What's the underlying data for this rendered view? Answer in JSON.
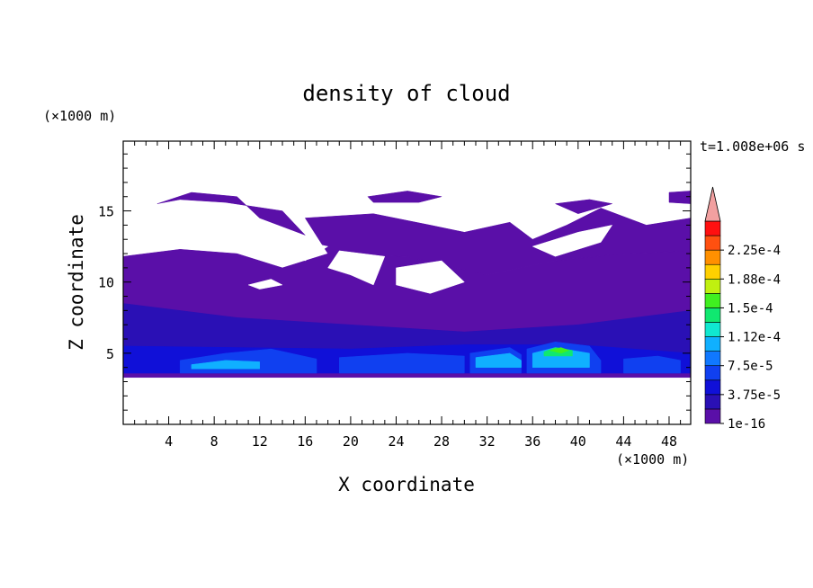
{
  "chart_data": {
    "type": "heatmap",
    "title": "density of cloud",
    "xlabel": "X coordinate",
    "ylabel": "Z coordinate",
    "x_unit": "(×1000 m)",
    "y_unit": "(×1000 m)",
    "time_label": "t=1.008e+06 s",
    "xlim": [
      0,
      49.9
    ],
    "ylim": [
      0,
      19.9
    ],
    "x_ticks": [
      "4",
      "8",
      "12",
      "16",
      "20",
      "24",
      "28",
      "32",
      "36",
      "40",
      "44",
      "48"
    ],
    "y_ticks": [
      "5",
      "10",
      "15"
    ],
    "colorbar": {
      "labels": [
        "1e-16",
        "3.75e-5",
        "7.5e-5",
        "1.12e-4",
        "1.5e-4",
        "1.88e-4",
        "2.25e-4"
      ],
      "levels": 14,
      "colors": [
        "#5a0fa8",
        "#2a10b5",
        "#1010d8",
        "#1040f0",
        "#1078ff",
        "#10b0ff",
        "#10e8d0",
        "#10e870",
        "#40f020",
        "#c0f010",
        "#ffd000",
        "#ff9000",
        "#ff5010",
        "#ff1010"
      ],
      "overflow_color": "#f2a0a0"
    },
    "regions": [
      {
        "level": 1,
        "points": [
          [
            0,
            11.8
          ],
          [
            5,
            12.3
          ],
          [
            10,
            12.0
          ],
          [
            14,
            11.0
          ],
          [
            18,
            12.0
          ],
          [
            25,
            11.8
          ],
          [
            32,
            10.5
          ],
          [
            38,
            11.5
          ],
          [
            44,
            12.0
          ],
          [
            49.9,
            12.2
          ],
          [
            49.9,
            3.3
          ],
          [
            0,
            3.3
          ]
        ]
      },
      {
        "level": 1,
        "points": [
          [
            3,
            15.5
          ],
          [
            6,
            16.3
          ],
          [
            10,
            16.0
          ],
          [
            12,
            14.5
          ],
          [
            16,
            13.3
          ],
          [
            14,
            15.0
          ],
          [
            9,
            15.6
          ],
          [
            5,
            15.8
          ]
        ]
      },
      {
        "level": 1,
        "points": [
          [
            16,
            14.5
          ],
          [
            22,
            14.8
          ],
          [
            27,
            14.0
          ],
          [
            30,
            13.5
          ],
          [
            34,
            14.2
          ],
          [
            36,
            13.0
          ],
          [
            39,
            14.0
          ],
          [
            42,
            15.2
          ],
          [
            46,
            14.0
          ],
          [
            49.9,
            14.5
          ],
          [
            49.9,
            12.2
          ],
          [
            44,
            12.0
          ],
          [
            38,
            11.5
          ],
          [
            32,
            10.5
          ],
          [
            25,
            11.8
          ],
          [
            18,
            12.0
          ]
        ]
      },
      {
        "level": 1,
        "points": [
          [
            21.5,
            16.0
          ],
          [
            25,
            16.4
          ],
          [
            28,
            16.0
          ],
          [
            26,
            15.6
          ],
          [
            22,
            15.6
          ]
        ]
      },
      {
        "level": 1,
        "points": [
          [
            48,
            16.3
          ],
          [
            49.9,
            16.4
          ],
          [
            49.9,
            15.5
          ],
          [
            48,
            15.6
          ]
        ]
      },
      {
        "level": 1,
        "points": [
          [
            38,
            15.5
          ],
          [
            41,
            15.8
          ],
          [
            43,
            15.5
          ],
          [
            40,
            14.8
          ]
        ]
      },
      {
        "level": 2,
        "points": [
          [
            0,
            8.5
          ],
          [
            10,
            7.5
          ],
          [
            20,
            7.0
          ],
          [
            30,
            6.5
          ],
          [
            40,
            7.0
          ],
          [
            49.9,
            8.0
          ],
          [
            49.9,
            3.6
          ],
          [
            0,
            3.6
          ]
        ]
      },
      {
        "level": 3,
        "points": [
          [
            0,
            5.5
          ],
          [
            10,
            5.4
          ],
          [
            20,
            5.3
          ],
          [
            30,
            5.6
          ],
          [
            40,
            5.6
          ],
          [
            49.9,
            5.0
          ],
          [
            49.9,
            3.6
          ],
          [
            0,
            3.6
          ]
        ]
      },
      {
        "level": 4,
        "points": [
          [
            5,
            4.5
          ],
          [
            9,
            5.0
          ],
          [
            13,
            5.3
          ],
          [
            17,
            4.6
          ],
          [
            17,
            3.6
          ],
          [
            5,
            3.6
          ]
        ]
      },
      {
        "level": 4,
        "points": [
          [
            19,
            4.7
          ],
          [
            25,
            5.0
          ],
          [
            30,
            4.8
          ],
          [
            30,
            3.6
          ],
          [
            19,
            3.6
          ]
        ]
      },
      {
        "level": 4,
        "points": [
          [
            30.5,
            5.0
          ],
          [
            34,
            5.4
          ],
          [
            35,
            4.9
          ],
          [
            35,
            3.6
          ],
          [
            30.5,
            3.6
          ]
        ]
      },
      {
        "level": 4,
        "points": [
          [
            35.5,
            5.3
          ],
          [
            38,
            5.8
          ],
          [
            41,
            5.5
          ],
          [
            42,
            4.5
          ],
          [
            42,
            3.6
          ],
          [
            35.5,
            3.6
          ]
        ]
      },
      {
        "level": 4,
        "points": [
          [
            44,
            4.6
          ],
          [
            47,
            4.8
          ],
          [
            49,
            4.5
          ],
          [
            49,
            3.6
          ],
          [
            44,
            3.6
          ]
        ]
      },
      {
        "level": 6,
        "points": [
          [
            6,
            4.2
          ],
          [
            9,
            4.5
          ],
          [
            12,
            4.4
          ],
          [
            12,
            3.9
          ],
          [
            6,
            3.9
          ]
        ]
      },
      {
        "level": 6,
        "points": [
          [
            31,
            4.7
          ],
          [
            34,
            5.0
          ],
          [
            35,
            4.5
          ],
          [
            35,
            4.0
          ],
          [
            31,
            4.0
          ]
        ]
      },
      {
        "level": 6,
        "points": [
          [
            36,
            5.0
          ],
          [
            38,
            5.4
          ],
          [
            41,
            5.0
          ],
          [
            41,
            4.0
          ],
          [
            36,
            4.0
          ]
        ]
      },
      {
        "level": 8,
        "points": [
          [
            37,
            5.1
          ],
          [
            38,
            5.4
          ],
          [
            39.5,
            5.2
          ],
          [
            39.5,
            4.8
          ],
          [
            37,
            4.8
          ]
        ]
      },
      {
        "level": 9,
        "points": [
          [
            37.5,
            5.2
          ],
          [
            38.5,
            5.4
          ],
          [
            39.2,
            5.2
          ],
          [
            38.5,
            5.0
          ]
        ]
      },
      {
        "level": 0,
        "points": [
          [
            11,
            13.2
          ],
          [
            15,
            13.0
          ],
          [
            18,
            12.5
          ],
          [
            16,
            11.5
          ],
          [
            12,
            12.3
          ]
        ]
      },
      {
        "level": 0,
        "points": [
          [
            19,
            12.2
          ],
          [
            23,
            11.8
          ],
          [
            22,
            9.8
          ],
          [
            20,
            10.5
          ],
          [
            18,
            11.0
          ]
        ]
      },
      {
        "level": 0,
        "points": [
          [
            24,
            11.0
          ],
          [
            28,
            11.5
          ],
          [
            30,
            10.0
          ],
          [
            27,
            9.2
          ],
          [
            24,
            9.8
          ]
        ]
      },
      {
        "level": 0,
        "points": [
          [
            40,
            13.5
          ],
          [
            43,
            14.0
          ],
          [
            42,
            12.8
          ],
          [
            38,
            11.8
          ],
          [
            36,
            12.5
          ]
        ]
      },
      {
        "level": 0,
        "points": [
          [
            11,
            9.8
          ],
          [
            13,
            10.2
          ],
          [
            14,
            9.8
          ],
          [
            12,
            9.5
          ]
        ]
      }
    ]
  }
}
